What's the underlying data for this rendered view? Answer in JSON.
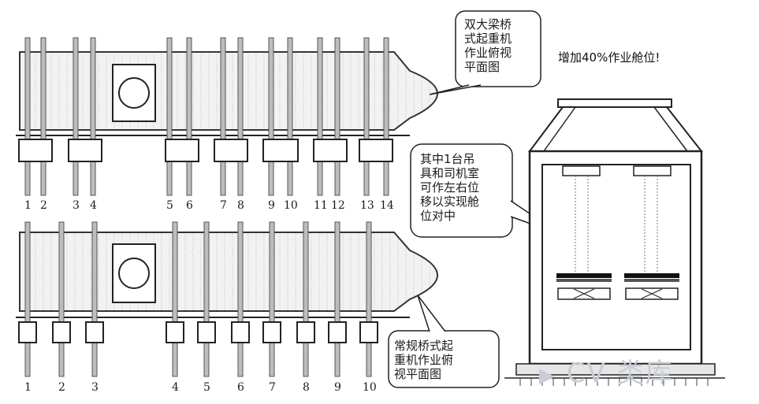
{
  "callouts": {
    "top_ship": [
      "双大梁桥",
      "式起重机",
      "作业俯视",
      "平面图"
    ],
    "bottom_ship": [
      "常规桥式起",
      "重机作业俯",
      "视平面图"
    ],
    "crane_side": [
      "其中1台吊",
      "具和司机室",
      "可作左右位",
      "移以实现舱",
      "位对中"
    ]
  },
  "highlight": "增加40%作业舱位!",
  "top_positions": [
    "1",
    "2",
    "3",
    "4",
    "5",
    "6",
    "7",
    "8",
    "9",
    "10",
    "11",
    "12",
    "13",
    "14"
  ],
  "bottom_positions": [
    "1",
    "2",
    "3",
    "4",
    "5",
    "6",
    "7",
    "8",
    "9",
    "10"
  ],
  "watermark": "CV 类库"
}
